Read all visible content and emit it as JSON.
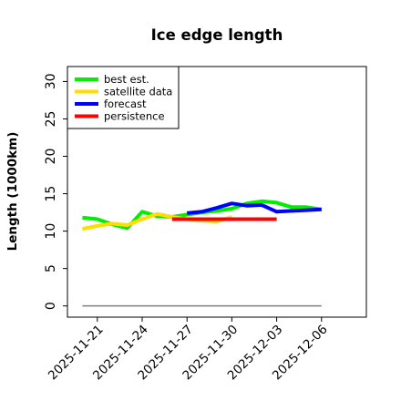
{
  "chart_data": {
    "type": "line",
    "title": "Ice edge length",
    "ylabel": "Length (1000km)",
    "xlabel": "",
    "ylim": [
      -1.5,
      32
    ],
    "xlim": [
      "2025-11-19",
      "2025-12-09"
    ],
    "y_ticks": [
      0,
      5,
      10,
      15,
      20,
      25,
      30
    ],
    "y_tick_labels": [
      "0",
      "5",
      "10",
      "15",
      "20",
      "25",
      "30"
    ],
    "x_ticks": [
      "2025-11-21",
      "2025-11-24",
      "2025-11-27",
      "2025-11-30",
      "2025-12-03",
      "2025-12-06"
    ],
    "x_tick_labels": [
      "2025-11-21",
      "2025-11-24",
      "2025-11-27",
      "2025-11-30",
      "2025-12-03",
      "2025-12-06"
    ],
    "x_tick_colors": [
      "#000000",
      "#000000",
      "#2e8b2e",
      "#000000",
      "#000000",
      "#000000"
    ],
    "grid": false,
    "legend_position": "top-left",
    "baseline": {
      "y": 0,
      "x": [
        "2025-11-20",
        "2025-12-06"
      ],
      "color": "#7f7f7f"
    },
    "series": [
      {
        "name": "best est.",
        "color": "#00ee00",
        "x": [
          "2025-11-20",
          "2025-11-21",
          "2025-11-22",
          "2025-11-23",
          "2025-11-24",
          "2025-11-25",
          "2025-11-26",
          "2025-11-27",
          "2025-11-28",
          "2025-11-29",
          "2025-11-30",
          "2025-12-01",
          "2025-12-02",
          "2025-12-03",
          "2025-12-04",
          "2025-12-05",
          "2025-12-06"
        ],
        "y": [
          11.8,
          11.6,
          10.9,
          10.4,
          12.6,
          12.0,
          11.9,
          12.2,
          12.5,
          12.7,
          13.0,
          13.7,
          14.0,
          13.8,
          13.2,
          13.2,
          12.9
        ]
      },
      {
        "name": "satellite data",
        "color": "#ffdd00",
        "x": [
          "2025-11-20",
          "2025-11-21",
          "2025-11-22",
          "2025-11-23",
          "2025-11-24",
          "2025-11-25",
          "2025-11-26",
          "2025-11-27",
          "2025-11-28",
          "2025-11-29",
          "2025-11-30"
        ],
        "y": [
          10.3,
          10.7,
          11.0,
          10.8,
          11.6,
          12.3,
          11.9,
          11.6,
          11.4,
          11.3,
          11.9
        ]
      },
      {
        "name": "forecast",
        "color": "#0000ff",
        "x": [
          "2025-11-27",
          "2025-11-28",
          "2025-11-29",
          "2025-11-30",
          "2025-12-01",
          "2025-12-02",
          "2025-12-03",
          "2025-12-04",
          "2025-12-05",
          "2025-12-06"
        ],
        "y": [
          12.4,
          12.6,
          13.1,
          13.7,
          13.4,
          13.5,
          12.6,
          12.7,
          12.8,
          12.9
        ]
      },
      {
        "name": "persistence",
        "color": "#ff0000",
        "x": [
          "2025-11-26",
          "2025-12-03"
        ],
        "y": [
          11.6,
          11.6
        ]
      }
    ]
  }
}
